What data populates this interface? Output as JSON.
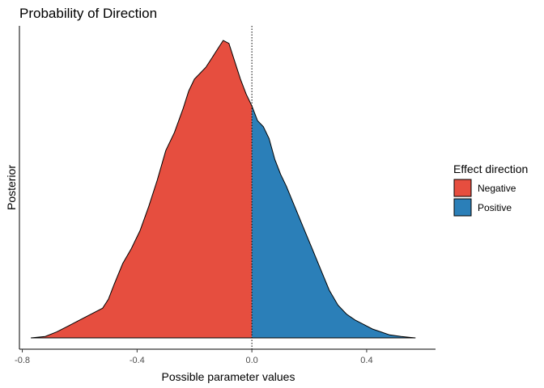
{
  "chart_data": {
    "type": "area",
    "title": "Probability of Direction",
    "xlabel": "Possible parameter values",
    "ylabel": "Posterior",
    "xlim": [
      -0.81,
      0.64
    ],
    "ylim": [
      0,
      1.05
    ],
    "x_ticks": [
      -0.8,
      -0.4,
      0.0,
      0.4
    ],
    "x_tick_labels": [
      "-0.8",
      "-0.4",
      "0.0",
      "0.4"
    ],
    "reference_line_x": 0.0,
    "grid": false,
    "legend": {
      "title": "Effect direction",
      "position": "right",
      "entries": [
        {
          "label": "Negative",
          "color": "#E64E3F"
        },
        {
          "label": "Positive",
          "color": "#2B7FB8"
        }
      ]
    },
    "density": {
      "x": [
        -0.77,
        -0.72,
        -0.68,
        -0.64,
        -0.6,
        -0.56,
        -0.52,
        -0.5,
        -0.48,
        -0.45,
        -0.42,
        -0.39,
        -0.36,
        -0.33,
        -0.3,
        -0.27,
        -0.24,
        -0.22,
        -0.2,
        -0.18,
        -0.16,
        -0.14,
        -0.12,
        -0.1,
        -0.08,
        -0.06,
        -0.04,
        -0.02,
        0.0,
        0.02,
        0.04,
        0.06,
        0.08,
        0.1,
        0.12,
        0.15,
        0.18,
        0.21,
        0.24,
        0.27,
        0.3,
        0.33,
        0.36,
        0.39,
        0.42,
        0.45,
        0.48,
        0.52,
        0.57
      ],
      "y": [
        0.0,
        0.005,
        0.02,
        0.04,
        0.06,
        0.08,
        0.1,
        0.13,
        0.18,
        0.25,
        0.3,
        0.36,
        0.44,
        0.53,
        0.63,
        0.69,
        0.77,
        0.83,
        0.87,
        0.89,
        0.91,
        0.94,
        0.97,
        1.0,
        0.99,
        0.93,
        0.87,
        0.82,
        0.78,
        0.73,
        0.71,
        0.67,
        0.6,
        0.55,
        0.51,
        0.44,
        0.37,
        0.3,
        0.23,
        0.16,
        0.11,
        0.08,
        0.06,
        0.045,
        0.03,
        0.02,
        0.01,
        0.005,
        0.0
      ]
    }
  }
}
